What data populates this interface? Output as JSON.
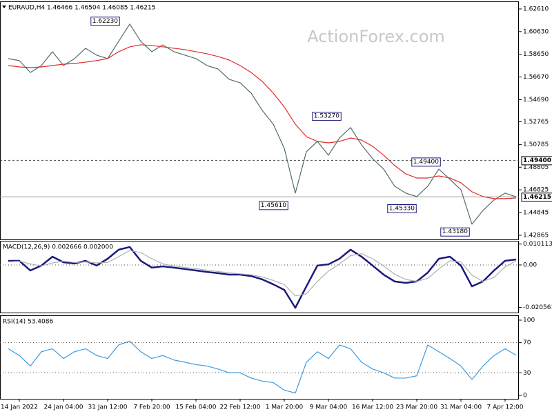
{
  "chart_data": [
    {
      "type": "line",
      "title": "EURAUD,H4 1.46466 1.46504 1.46085 1.46215",
      "watermark": "ActionForex.com",
      "categories": [
        null,
        "14 Jan 2022",
        null,
        null,
        null,
        "24 Jan 04:00",
        null,
        null,
        null,
        "31 Jan 12:00",
        null,
        null,
        null,
        "7 Feb 20:00",
        null,
        null,
        null,
        "15 Feb 04:00",
        null,
        null,
        null,
        "22 Feb 12:00",
        null,
        null,
        null,
        "1 Mar 20:00",
        null,
        null,
        null,
        "9 Mar 04:00",
        null,
        null,
        null,
        "16 Mar 12:00",
        null,
        null,
        null,
        "23 Mar 20:00",
        null,
        null,
        null,
        "31 Mar 04:00",
        null,
        null,
        null,
        "7 Apr 12:00",
        null
      ],
      "series": [
        {
          "name": "EURAUD",
          "color": "#4f6f66",
          "values": [
            1.5828,
            1.581,
            1.5707,
            1.5767,
            1.5888,
            1.5767,
            1.5828,
            1.5918,
            1.5858,
            1.5828,
            1.5978,
            1.6129,
            1.5978,
            1.5888,
            1.5948,
            1.5888,
            1.5858,
            1.5828,
            1.5767,
            1.5737,
            1.5647,
            1.5617,
            1.5527,
            1.5376,
            1.5256,
            1.5045,
            1.4654,
            1.5015,
            1.5105,
            1.4985,
            1.5135,
            1.5226,
            1.5075,
            1.4955,
            1.4864,
            1.4714,
            1.4654,
            1.4624,
            1.4714,
            1.4864,
            1.4774,
            1.4684,
            1.4383,
            1.4503,
            1.4594,
            1.4654,
            1.46215
          ]
        },
        {
          "name": "MA",
          "color": "#e02b2b",
          "values": [
            1.5767,
            1.5755,
            1.5749,
            1.5755,
            1.5767,
            1.5779,
            1.5785,
            1.5797,
            1.581,
            1.5828,
            1.5888,
            1.593,
            1.5948,
            1.5942,
            1.593,
            1.5918,
            1.5906,
            1.5888,
            1.587,
            1.5846,
            1.5816,
            1.5767,
            1.5707,
            1.5629,
            1.5527,
            1.5406,
            1.5256,
            1.5147,
            1.5105,
            1.5093,
            1.5105,
            1.5135,
            1.5117,
            1.5063,
            1.4985,
            1.4895,
            1.4822,
            1.4786,
            1.4786,
            1.4804,
            1.4786,
            1.4744,
            1.4666,
            1.4624,
            1.4606,
            1.4606,
            1.4612
          ]
        }
      ],
      "ylim": [
        1.425,
        1.6327
      ],
      "yticks": [
        {
          "value": 1.6261,
          "label": "1.62610"
        },
        {
          "value": 1.6063,
          "label": "1.60630"
        },
        {
          "value": 1.5865,
          "label": "1.58650"
        },
        {
          "value": 1.5667,
          "label": "1.56670"
        },
        {
          "value": 1.5469,
          "label": "1.54690"
        },
        1.52765,
        1.50785,
        1.48805,
        1.46825,
        1.44845,
        1.42865
      ],
      "levels": [
        {
          "value": 1.494,
          "label": "1.49400",
          "style": "dashed"
        },
        {
          "value": 1.46215,
          "label": "1.46215",
          "style": "solid"
        }
      ],
      "annotations": [
        {
          "value": 1.6223,
          "label": "1.62230"
        },
        {
          "value": 1.5327,
          "label": "1.53270"
        },
        {
          "value": 1.4561,
          "label": "1.45610"
        },
        {
          "value": 1.4533,
          "label": "1.45330"
        },
        {
          "value": 1.494,
          "label": "1.49400"
        },
        {
          "value": 1.4318,
          "label": "1.43180"
        }
      ]
    },
    {
      "type": "line",
      "title": "MACD(12,26,9) 0.002666 0.002000",
      "series": [
        {
          "name": "MACD",
          "color": "#1a1a80",
          "weight": "bold",
          "values": [
            0.002,
            0.002,
            -0.0027,
            -0.0003,
            0.004,
            0.0013,
            0.0007,
            0.002,
            -0.0003,
            0.003,
            0.0074,
            0.0087,
            0.002,
            -0.0013,
            -0.0007,
            -0.0013,
            -0.002,
            -0.0027,
            -0.0034,
            -0.004,
            -0.0047,
            -0.0047,
            -0.0054,
            -0.007,
            -0.0094,
            -0.0121,
            -0.0208,
            -0.0104,
            -0.0003,
            0.0003,
            0.003,
            0.0074,
            0.004,
            -0.0003,
            -0.0047,
            -0.008,
            -0.0087,
            -0.008,
            -0.0037,
            0.003,
            0.004,
            -0.0003,
            -0.0104,
            -0.008,
            -0.0027,
            0.002,
            0.002666
          ]
        },
        {
          "name": "Signal",
          "color": "#b0b0b0",
          "weight": "normal",
          "values": [
            0.0015,
            0.0018,
            0.0005,
            -0.0005,
            0.001,
            0.0018,
            0.0012,
            0.0015,
            0.001,
            0.0012,
            0.004,
            0.007,
            0.006,
            0.003,
            0.0005,
            -0.0005,
            -0.0012,
            -0.0018,
            -0.0025,
            -0.0032,
            -0.0038,
            -0.0043,
            -0.0048,
            -0.0058,
            -0.0075,
            -0.0095,
            -0.015,
            -0.014,
            -0.008,
            -0.003,
            0.0005,
            0.0045,
            0.0055,
            0.003,
            -0.0005,
            -0.0045,
            -0.007,
            -0.008,
            -0.0065,
            -0.002,
            0.002,
            0.0015,
            -0.005,
            -0.008,
            -0.006,
            -0.001,
            0.002
          ]
        }
      ],
      "ylim": [
        -0.0231,
        0.0117
      ],
      "yticks": [
        0.010113,
        {
          "value": 0,
          "label": "0.00"
        },
        -0.020561
      ],
      "levels": [
        {
          "value": 0,
          "style": "dotted"
        }
      ]
    },
    {
      "type": "line",
      "title": "RSI(14) 53.4086",
      "series": [
        {
          "name": "RSI",
          "color": "#3b9ae0",
          "weight": "normal",
          "values": [
            62,
            53,
            39,
            58,
            62,
            49,
            58,
            62,
            53,
            49,
            67,
            72,
            58,
            49,
            53,
            47,
            44,
            41,
            39,
            35,
            30,
            30,
            23,
            19,
            17,
            7,
            3,
            44,
            58,
            49,
            67,
            62,
            44,
            35,
            30,
            23,
            23,
            26,
            67,
            58,
            49,
            39,
            21,
            39,
            53,
            62,
            53.4086
          ]
        }
      ],
      "ylim": [
        -4.6,
        106.4
      ],
      "yticks": [
        100,
        70,
        30,
        0
      ],
      "levels": [
        {
          "value": 70,
          "style": "dotted"
        },
        {
          "value": 30,
          "style": "dotted"
        }
      ]
    }
  ]
}
